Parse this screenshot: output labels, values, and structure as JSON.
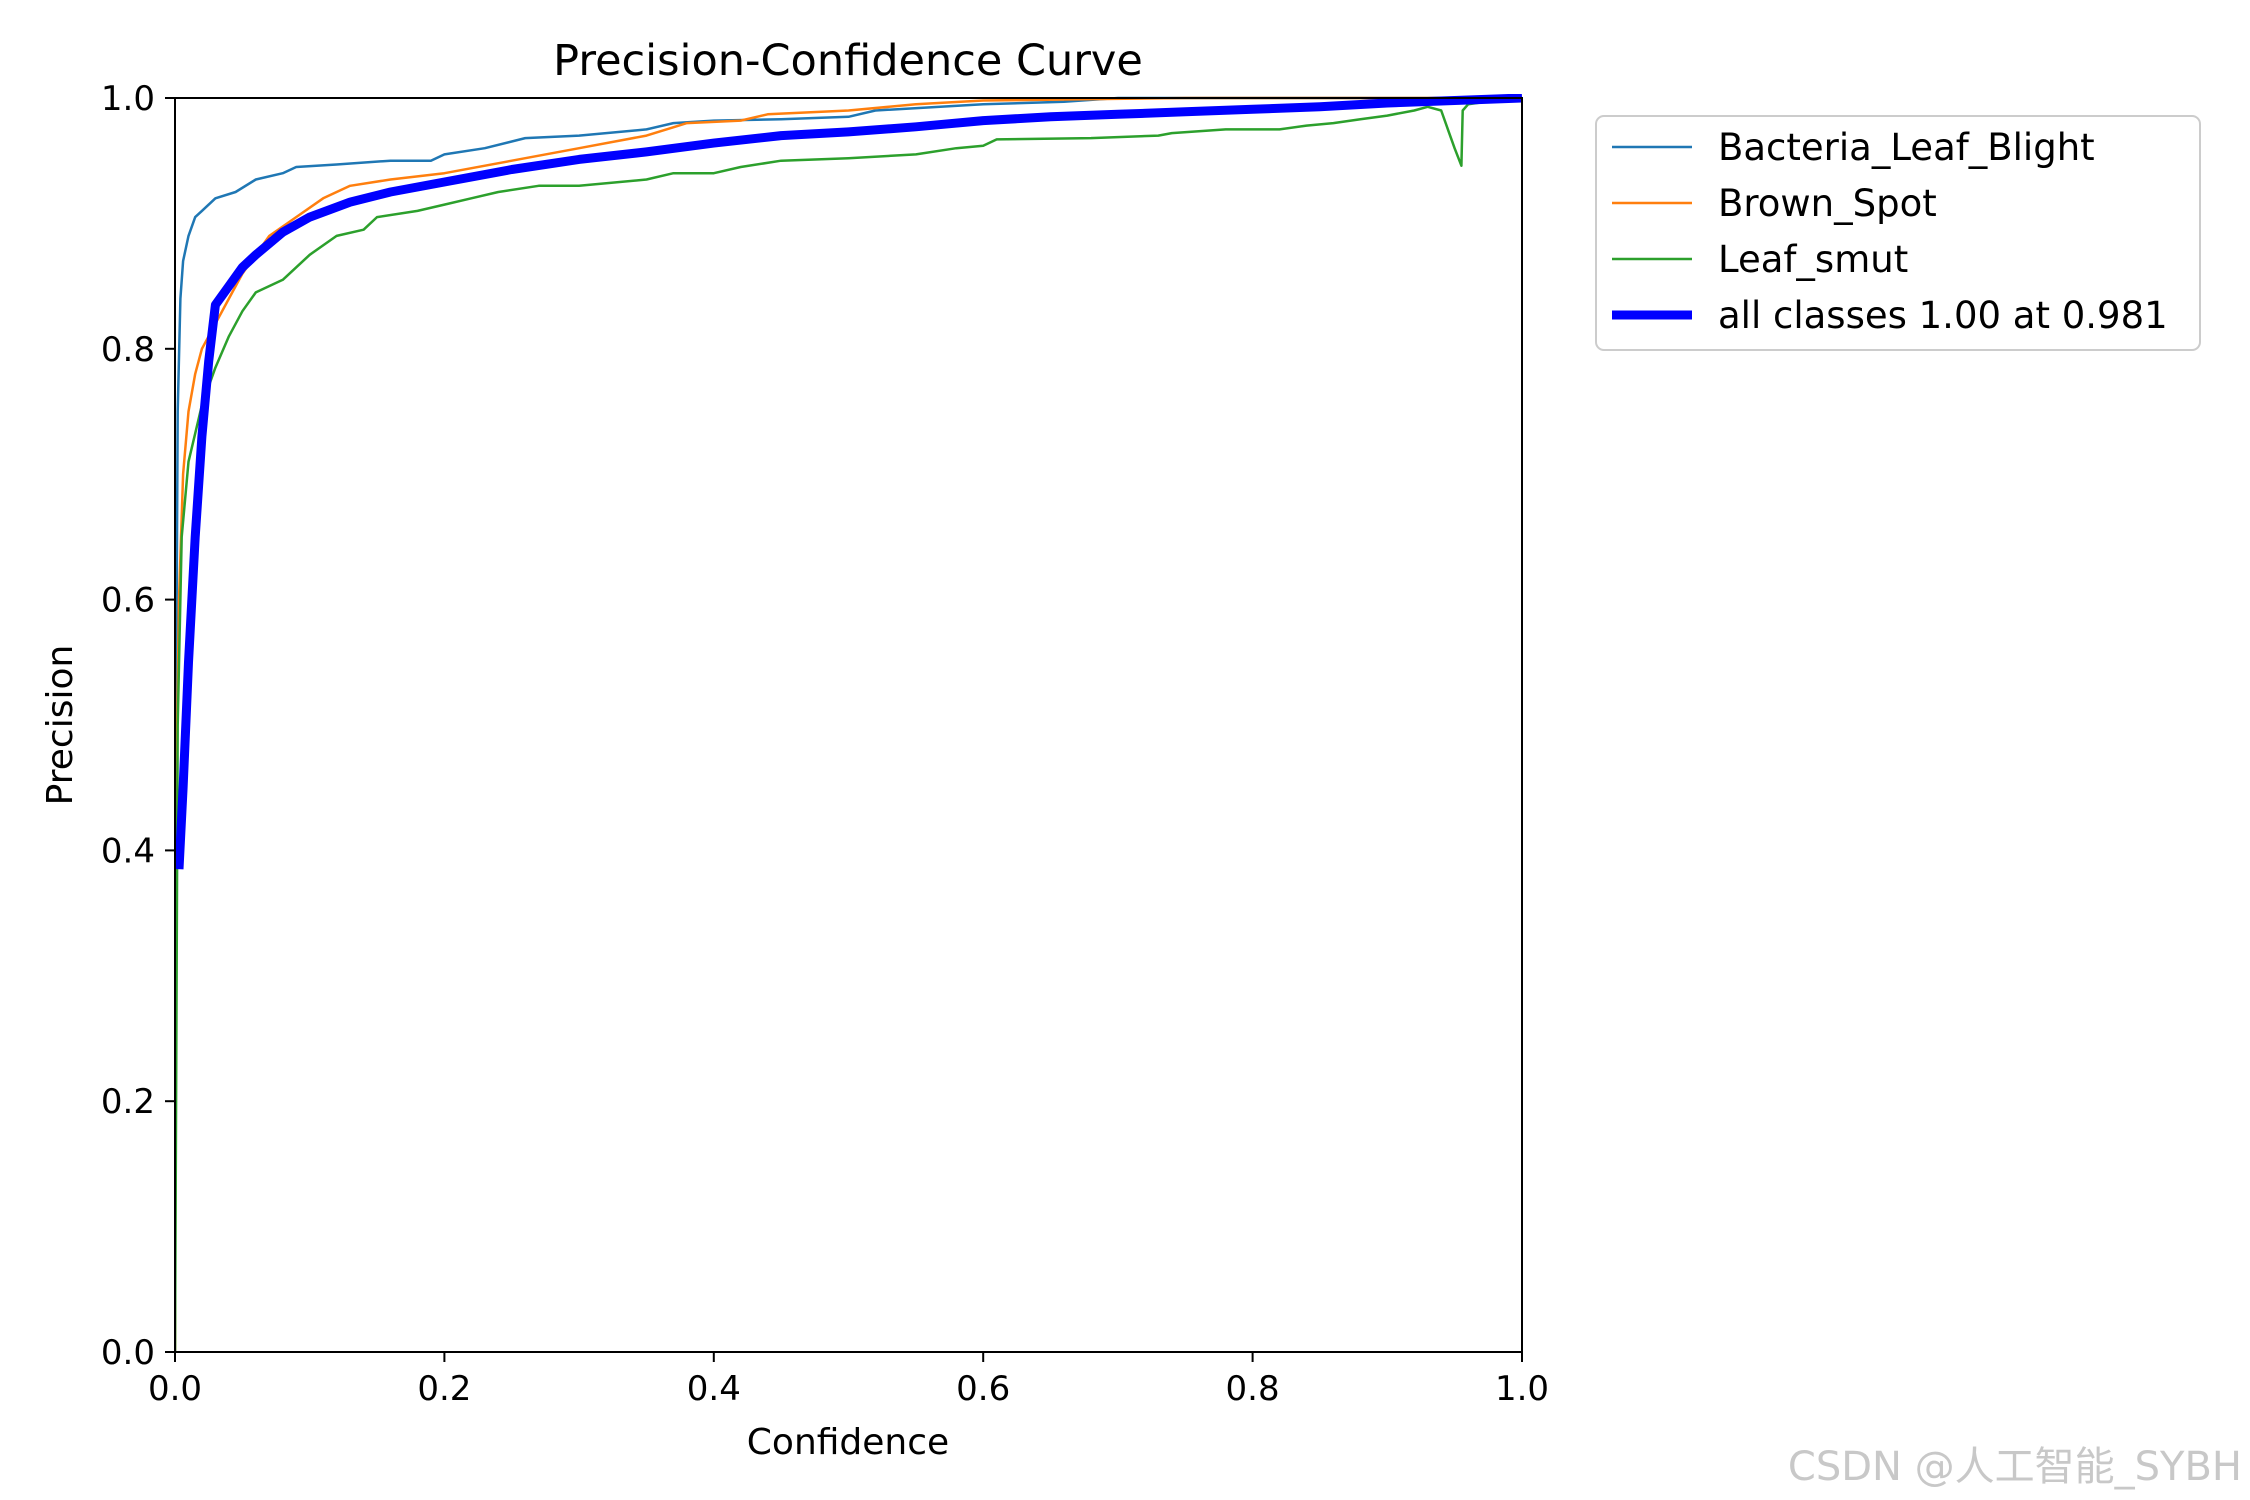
{
  "chart_data": {
    "type": "line",
    "title": "Precision-Confidence Curve",
    "xlabel": "Confidence",
    "ylabel": "Precision",
    "xlim": [
      0,
      1
    ],
    "ylim": [
      0,
      1
    ],
    "xticks": [
      "0.0",
      "0.2",
      "0.4",
      "0.6",
      "0.8",
      "1.0"
    ],
    "yticks": [
      "0.0",
      "0.2",
      "0.4",
      "0.6",
      "0.8",
      "1.0"
    ],
    "grid": false,
    "legend_position": "outside-top-right",
    "series": [
      {
        "name": "Bacteria_Leaf_Blight",
        "color": "#1f77b4",
        "width": "thin",
        "points": [
          [
            0.0,
            0.0
          ],
          [
            0.001,
            0.55
          ],
          [
            0.002,
            0.75
          ],
          [
            0.004,
            0.84
          ],
          [
            0.006,
            0.87
          ],
          [
            0.01,
            0.89
          ],
          [
            0.015,
            0.905
          ],
          [
            0.02,
            0.91
          ],
          [
            0.03,
            0.92
          ],
          [
            0.045,
            0.925
          ],
          [
            0.06,
            0.935
          ],
          [
            0.08,
            0.94
          ],
          [
            0.09,
            0.945
          ],
          [
            0.12,
            0.947
          ],
          [
            0.16,
            0.95
          ],
          [
            0.19,
            0.95
          ],
          [
            0.2,
            0.955
          ],
          [
            0.23,
            0.96
          ],
          [
            0.26,
            0.968
          ],
          [
            0.3,
            0.97
          ],
          [
            0.35,
            0.975
          ],
          [
            0.37,
            0.98
          ],
          [
            0.4,
            0.982
          ],
          [
            0.45,
            0.983
          ],
          [
            0.5,
            0.985
          ],
          [
            0.52,
            0.99
          ],
          [
            0.6,
            0.995
          ],
          [
            0.66,
            0.997
          ],
          [
            0.7,
            1.0
          ],
          [
            1.0,
            1.0
          ]
        ]
      },
      {
        "name": "Brown_Spot",
        "color": "#ff7f0e",
        "width": "thin",
        "points": [
          [
            0.0,
            0.0
          ],
          [
            0.001,
            0.45
          ],
          [
            0.003,
            0.6
          ],
          [
            0.006,
            0.7
          ],
          [
            0.01,
            0.75
          ],
          [
            0.015,
            0.78
          ],
          [
            0.02,
            0.8
          ],
          [
            0.03,
            0.82
          ],
          [
            0.04,
            0.84
          ],
          [
            0.05,
            0.86
          ],
          [
            0.06,
            0.875
          ],
          [
            0.07,
            0.89
          ],
          [
            0.09,
            0.905
          ],
          [
            0.11,
            0.92
          ],
          [
            0.13,
            0.93
          ],
          [
            0.16,
            0.935
          ],
          [
            0.2,
            0.94
          ],
          [
            0.25,
            0.95
          ],
          [
            0.3,
            0.96
          ],
          [
            0.35,
            0.97
          ],
          [
            0.38,
            0.98
          ],
          [
            0.42,
            0.982
          ],
          [
            0.44,
            0.987
          ],
          [
            0.5,
            0.99
          ],
          [
            0.55,
            0.995
          ],
          [
            0.6,
            0.998
          ],
          [
            0.75,
            1.0
          ],
          [
            1.0,
            1.0
          ]
        ]
      },
      {
        "name": "Leaf_smut",
        "color": "#2ca02c",
        "width": "thin",
        "points": [
          [
            0.0,
            0.0
          ],
          [
            0.002,
            0.5
          ],
          [
            0.005,
            0.65
          ],
          [
            0.01,
            0.71
          ],
          [
            0.02,
            0.755
          ],
          [
            0.03,
            0.785
          ],
          [
            0.04,
            0.81
          ],
          [
            0.05,
            0.83
          ],
          [
            0.06,
            0.845
          ],
          [
            0.08,
            0.855
          ],
          [
            0.1,
            0.875
          ],
          [
            0.12,
            0.89
          ],
          [
            0.14,
            0.895
          ],
          [
            0.15,
            0.905
          ],
          [
            0.18,
            0.91
          ],
          [
            0.2,
            0.915
          ],
          [
            0.22,
            0.92
          ],
          [
            0.24,
            0.925
          ],
          [
            0.27,
            0.93
          ],
          [
            0.3,
            0.93
          ],
          [
            0.35,
            0.935
          ],
          [
            0.37,
            0.94
          ],
          [
            0.4,
            0.94
          ],
          [
            0.42,
            0.945
          ],
          [
            0.45,
            0.95
          ],
          [
            0.5,
            0.952
          ],
          [
            0.55,
            0.955
          ],
          [
            0.58,
            0.96
          ],
          [
            0.6,
            0.962
          ],
          [
            0.61,
            0.967
          ],
          [
            0.68,
            0.968
          ],
          [
            0.73,
            0.97
          ],
          [
            0.74,
            0.972
          ],
          [
            0.78,
            0.975
          ],
          [
            0.82,
            0.975
          ],
          [
            0.84,
            0.978
          ],
          [
            0.86,
            0.98
          ],
          [
            0.88,
            0.983
          ],
          [
            0.9,
            0.986
          ],
          [
            0.92,
            0.99
          ],
          [
            0.93,
            0.993
          ],
          [
            0.94,
            0.99
          ],
          [
            0.945,
            0.975
          ],
          [
            0.95,
            0.96
          ],
          [
            0.955,
            0.946
          ],
          [
            0.956,
            0.99
          ],
          [
            0.96,
            0.995
          ],
          [
            0.98,
            0.998
          ],
          [
            1.0,
            1.0
          ]
        ]
      },
      {
        "name": "all classes 1.00 at 0.981",
        "color": "#0000ff",
        "width": "thick",
        "points": [
          [
            0.003,
            0.385
          ],
          [
            0.006,
            0.45
          ],
          [
            0.01,
            0.55
          ],
          [
            0.015,
            0.65
          ],
          [
            0.02,
            0.73
          ],
          [
            0.025,
            0.79
          ],
          [
            0.03,
            0.835
          ],
          [
            0.04,
            0.85
          ],
          [
            0.05,
            0.865
          ],
          [
            0.06,
            0.875
          ],
          [
            0.08,
            0.893
          ],
          [
            0.1,
            0.905
          ],
          [
            0.13,
            0.917
          ],
          [
            0.16,
            0.925
          ],
          [
            0.2,
            0.933
          ],
          [
            0.25,
            0.943
          ],
          [
            0.3,
            0.951
          ],
          [
            0.35,
            0.957
          ],
          [
            0.4,
            0.964
          ],
          [
            0.45,
            0.97
          ],
          [
            0.5,
            0.973
          ],
          [
            0.55,
            0.977
          ],
          [
            0.6,
            0.982
          ],
          [
            0.65,
            0.985
          ],
          [
            0.7,
            0.987
          ],
          [
            0.75,
            0.989
          ],
          [
            0.8,
            0.991
          ],
          [
            0.85,
            0.993
          ],
          [
            0.9,
            0.996
          ],
          [
            0.95,
            0.998
          ],
          [
            1.0,
            1.0
          ]
        ]
      }
    ]
  },
  "watermark": "CSDN @人工智能_SYBH"
}
